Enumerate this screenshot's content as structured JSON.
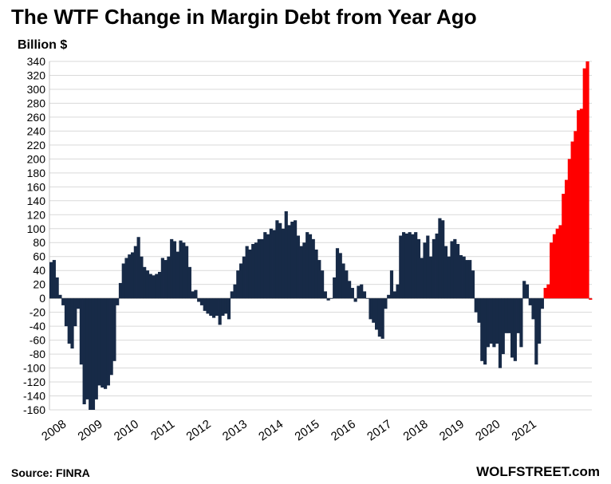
{
  "chart_data": {
    "type": "bar",
    "title": "The WTF Change in Margin Debt from Year Ago",
    "ylabel": "Billion $",
    "xlabel": "",
    "ylim": [
      -160,
      340
    ],
    "yticks": [
      340,
      320,
      300,
      280,
      260,
      240,
      220,
      200,
      180,
      160,
      140,
      120,
      100,
      80,
      60,
      40,
      20,
      0,
      -20,
      -40,
      -60,
      -80,
      -100,
      -120,
      -140,
      -160
    ],
    "x_tick_labels": [
      "2008",
      "2009",
      "2010",
      "2011",
      "2012",
      "2013",
      "2014",
      "2015",
      "2016",
      "2017",
      "2018",
      "2019",
      "2020",
      "2021"
    ],
    "x_start_year": 2008,
    "grid": true,
    "series": [
      {
        "color": "#172a47",
        "values": [
          52,
          55,
          30,
          5,
          -10,
          -40,
          -65,
          -72,
          -40,
          -15,
          -95,
          -152,
          -145,
          -160,
          -160,
          -145,
          -125,
          -128,
          -130,
          -125,
          -110,
          -90,
          -10,
          22,
          50,
          58,
          63,
          66,
          75,
          88,
          60,
          45,
          40,
          35,
          33,
          35,
          38,
          58,
          55,
          60,
          85,
          82,
          67,
          83,
          80,
          75,
          45,
          10,
          12,
          -5,
          -10,
          -18,
          -22,
          -25,
          -28,
          -25,
          -38,
          -25,
          -22,
          -30,
          10,
          20,
          40,
          50,
          60,
          75,
          70,
          78,
          80,
          85,
          85,
          95,
          92,
          100,
          98,
          112,
          108,
          100,
          125,
          105,
          110,
          112,
          90,
          75,
          80,
          95,
          92,
          85,
          70,
          55,
          40,
          10,
          -3,
          0,
          30,
          72,
          65,
          50,
          40,
          25,
          15,
          -5,
          18,
          20,
          10,
          0,
          -30,
          -35,
          -45,
          -55,
          -58,
          -15,
          5,
          40,
          10,
          20,
          90,
          95,
          93,
          95,
          92,
          95,
          85,
          58,
          80,
          90,
          60,
          85,
          93,
          115,
          112,
          75,
          60,
          82,
          85,
          78,
          62,
          60,
          55,
          55,
          40,
          -20,
          -35,
          -90,
          -95,
          -70,
          -65,
          -70,
          -65,
          -100,
          -80,
          -50,
          -50,
          -85,
          -90,
          -50,
          -70,
          25,
          20,
          -10,
          -30,
          -95,
          -65,
          -15
        ],
        "data_labels": []
      },
      {
        "color": "#ff0000",
        "values": [
          15,
          20,
          80,
          92,
          100,
          105,
          150,
          170,
          200,
          225,
          240,
          270,
          272,
          330,
          340,
          -2
        ]
      }
    ]
  },
  "footer": {
    "source": "Source: FINRA",
    "brand": "WOLFSTREET.com"
  }
}
